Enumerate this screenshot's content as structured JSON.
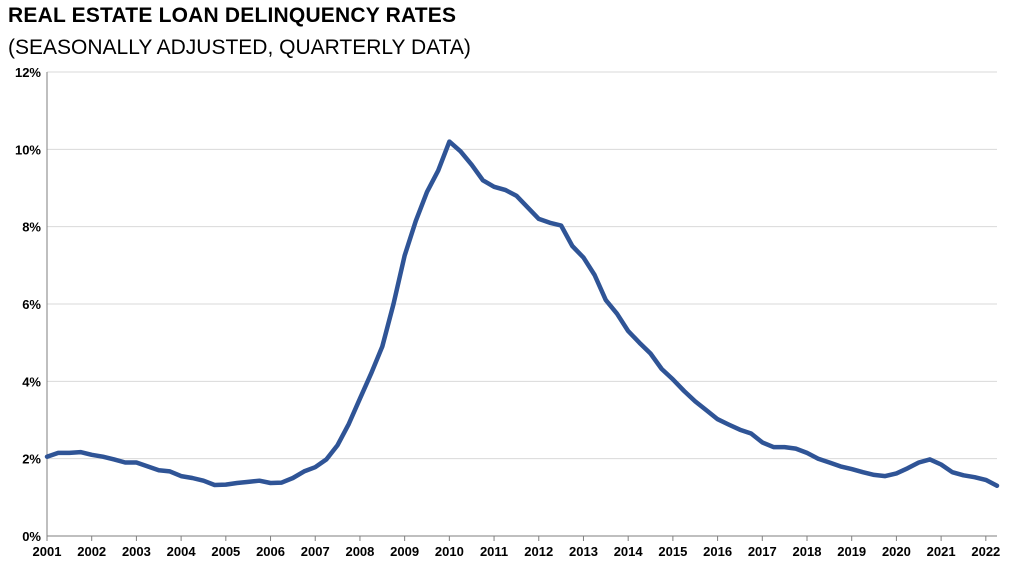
{
  "chart_data": {
    "type": "line",
    "title": "REAL ESTATE LOAN DELINQUENCY RATES",
    "subtitle": "(SEASONALLY ADJUSTED, QUARTERLY DATA)",
    "xlabel": "",
    "ylabel": "",
    "xlim": [
      2001,
      2022.25
    ],
    "ylim": [
      0,
      12
    ],
    "x_ticks": [
      2001,
      2002,
      2003,
      2004,
      2005,
      2006,
      2007,
      2008,
      2009,
      2010,
      2011,
      2012,
      2013,
      2014,
      2015,
      2016,
      2017,
      2018,
      2019,
      2020,
      2021,
      2022
    ],
    "x_tick_labels": [
      "2001",
      "2002",
      "2003",
      "2004",
      "2005",
      "2006",
      "2007",
      "2008",
      "2009",
      "2010",
      "2011",
      "2012",
      "2013",
      "2014",
      "2015",
      "2016",
      "2017",
      "2018",
      "2019",
      "2020",
      "2021",
      "2022"
    ],
    "y_ticks": [
      0,
      2,
      4,
      6,
      8,
      10,
      12
    ],
    "y_tick_labels": [
      "0%",
      "2%",
      "4%",
      "6%",
      "8%",
      "10%",
      "12%"
    ],
    "grid": "horizontal",
    "line_color": "#2F5496",
    "series": [
      {
        "x": [
          2001.0,
          2001.25,
          2001.5,
          2001.75,
          2002.0,
          2002.25,
          2002.5,
          2002.75,
          2003.0,
          2003.25,
          2003.5,
          2003.75,
          2004.0,
          2004.25,
          2004.5,
          2004.75,
          2005.0,
          2005.25,
          2005.5,
          2005.75,
          2006.0,
          2006.25,
          2006.5,
          2006.75,
          2007.0,
          2007.25,
          2007.5,
          2007.75,
          2008.0,
          2008.25,
          2008.5,
          2008.75,
          2009.0,
          2009.25,
          2009.5,
          2009.75,
          2010.0,
          2010.25,
          2010.5,
          2010.75,
          2011.0,
          2011.25,
          2011.5,
          2011.75,
          2012.0,
          2012.25,
          2012.5,
          2012.75,
          2013.0,
          2013.25,
          2013.5,
          2013.75,
          2014.0,
          2014.25,
          2014.5,
          2014.75,
          2015.0,
          2015.25,
          2015.5,
          2015.75,
          2016.0,
          2016.25,
          2016.5,
          2016.75,
          2017.0,
          2017.25,
          2017.5,
          2017.75,
          2018.0,
          2018.25,
          2018.5,
          2018.75,
          2019.0,
          2019.25,
          2019.5,
          2019.75,
          2020.0,
          2020.25,
          2020.5,
          2020.75,
          2021.0,
          2021.25,
          2021.5,
          2021.75,
          2022.0,
          2022.25
        ],
        "values": [
          2.05,
          2.15,
          2.15,
          2.17,
          2.1,
          2.05,
          1.98,
          1.9,
          1.9,
          1.8,
          1.7,
          1.67,
          1.55,
          1.5,
          1.43,
          1.32,
          1.33,
          1.37,
          1.4,
          1.43,
          1.37,
          1.38,
          1.5,
          1.67,
          1.78,
          1.98,
          2.35,
          2.9,
          3.55,
          4.2,
          4.9,
          6.0,
          7.25,
          8.15,
          8.9,
          9.45,
          10.2,
          9.95,
          9.6,
          9.2,
          9.03,
          8.95,
          8.8,
          8.5,
          8.2,
          8.1,
          8.03,
          7.5,
          7.2,
          6.75,
          6.1,
          5.75,
          5.3,
          5.0,
          4.72,
          4.32,
          4.05,
          3.75,
          3.48,
          3.25,
          3.02,
          2.88,
          2.75,
          2.65,
          2.42,
          2.3,
          2.3,
          2.26,
          2.15,
          2.0,
          1.9,
          1.8,
          1.73,
          1.65,
          1.58,
          1.55,
          1.62,
          1.75,
          1.9,
          1.98,
          1.85,
          1.65,
          1.57,
          1.52,
          1.45,
          1.3
        ]
      }
    ]
  }
}
